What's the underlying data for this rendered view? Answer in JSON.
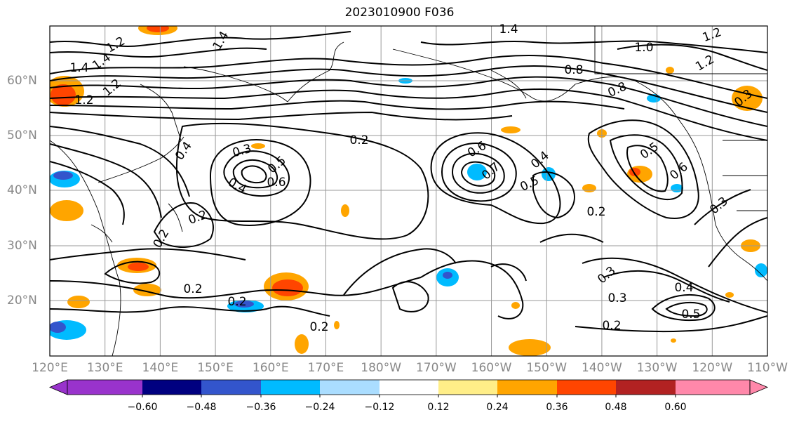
{
  "title": "2023010900 F036",
  "map": {
    "lon_labels": [
      "120°E",
      "130°E",
      "140°E",
      "150°E",
      "160°E",
      "170°E",
      "180°W",
      "170°W",
      "160°W",
      "150°W",
      "140°W",
      "130°W",
      "120°W",
      "110°W"
    ],
    "lat_labels": [
      "60°N",
      "50°N",
      "40°N",
      "30°N",
      "20°N"
    ],
    "contour_labels": [
      "1.2",
      "1.4",
      "1.4",
      "1.4",
      "1.2",
      "1.0",
      "1.2",
      "0.8",
      "0.8",
      "1.2",
      "0.4",
      "0.3",
      "0.5",
      "0.6",
      "0.4",
      "0.2",
      "0.2",
      "0.6",
      "0.7",
      "0.4",
      "0.5",
      "0.2",
      "0.5",
      "0.6",
      "0.3",
      "0.2",
      "0.2",
      "0.2",
      "0.2",
      "0.3",
      "0.2",
      "0.4",
      "0.5",
      "0.3",
      "1.2",
      "0.3",
      "1.4"
    ],
    "line_color": "#000000",
    "grid_color": "#999999"
  },
  "colorbar": {
    "ticks": [
      "−0.60",
      "−0.48",
      "−0.36",
      "−0.24",
      "−0.12",
      "0.12",
      "0.24",
      "0.36",
      "0.48",
      "0.60"
    ],
    "colors": [
      "#9933cc",
      "#000080",
      "#3355cc",
      "#00bbff",
      "#aaddff",
      "#ffffff",
      "#ffee88",
      "#ffa500",
      "#ff4500",
      "#b22222",
      "#ff88aa"
    ]
  }
}
